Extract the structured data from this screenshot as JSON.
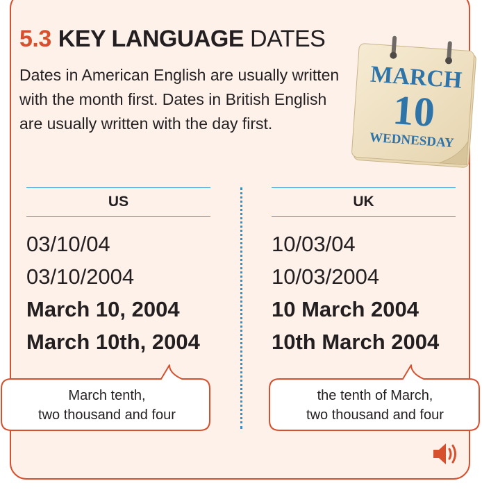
{
  "section": {
    "number": "5.3",
    "title_bold": "KEY LANGUAGE",
    "title_light": "DATES",
    "intro": "Dates in American English are usually written with the month first. Dates in British English are usually written with the day first."
  },
  "calendar": {
    "month": "MARCH",
    "day": "10",
    "weekday": "WEDNESDAY"
  },
  "us": {
    "heading": "US",
    "dates": [
      "03/10/04",
      "03/10/2004",
      "March 10, 2004",
      "March 10th, 2004"
    ],
    "spoken": [
      "March tenth,",
      "two thousand and four"
    ]
  },
  "uk": {
    "heading": "UK",
    "dates": [
      "10/03/04",
      "10/03/2004",
      "10 March 2004",
      "10th March 2004"
    ],
    "spoken": [
      "the tenth of March,",
      "two thousand and four"
    ]
  },
  "colors": {
    "accent": "#d6502e",
    "rule": "#2b93d0",
    "panel": "#fdf1ea",
    "calendar": "#f1e3c4"
  },
  "icons": {
    "audio": "speaker-icon"
  }
}
